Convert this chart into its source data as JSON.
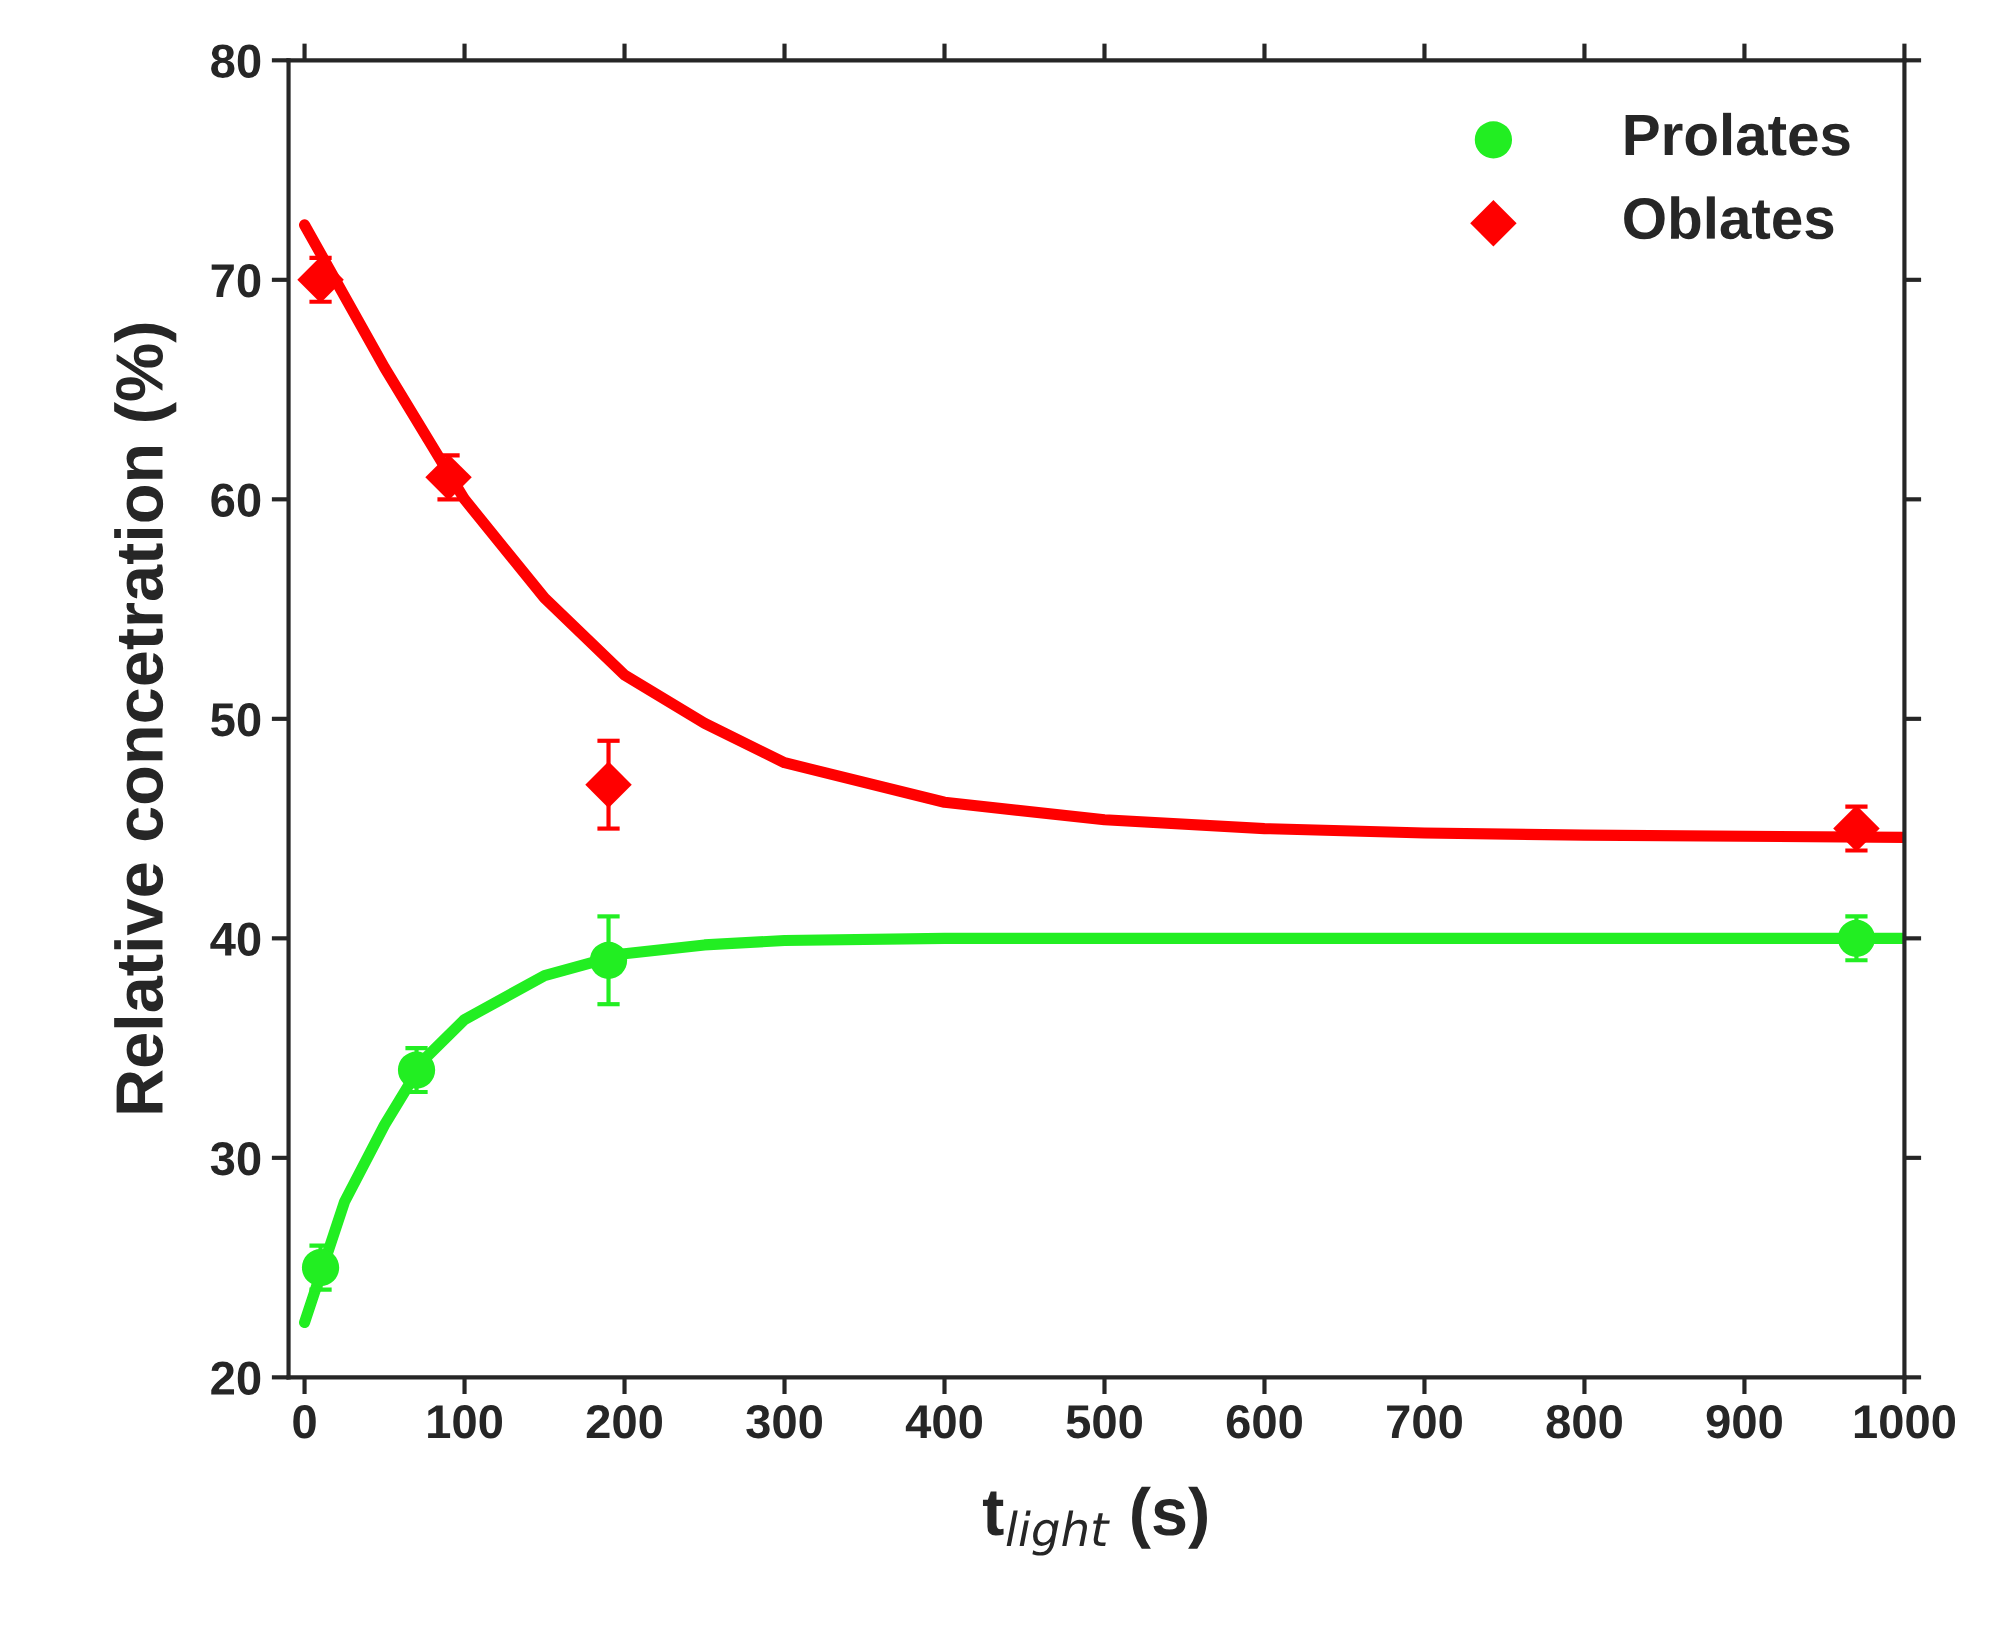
{
  "chart_data": {
    "type": "scatter",
    "xlabel": "t$_{light}$ (s)",
    "ylabel": "Relative concetration (%)",
    "xlim": [
      -10,
      1000
    ],
    "ylim": [
      20,
      80
    ],
    "xticks": [
      0,
      100,
      200,
      300,
      400,
      500,
      600,
      700,
      800,
      900,
      1000
    ],
    "yticks": [
      20,
      30,
      40,
      50,
      60,
      70,
      80
    ],
    "grid": false,
    "legend": "top right",
    "series": [
      {
        "type": "line",
        "color": "#22ee22",
        "x": [
          0,
          25,
          50,
          75,
          100,
          150,
          200,
          250,
          300,
          400,
          600,
          1000
        ],
        "values": [
          22.5,
          28,
          31.5,
          34.5,
          36.3,
          38.3,
          39.3,
          39.7,
          39.9,
          40,
          40,
          40
        ],
        "marker": "none"
      },
      {
        "type": "line",
        "color": "#ff0000",
        "x": [
          0,
          50,
          100,
          150,
          200,
          250,
          300,
          400,
          500,
          600,
          700,
          800,
          1000
        ],
        "values": [
          72.5,
          66,
          60,
          55.5,
          52,
          49.8,
          48,
          46.2,
          45.4,
          45,
          44.8,
          44.7,
          44.6
        ],
        "marker": "none"
      },
      {
        "name": "Prolates",
        "color": "#22ee22",
        "marker": "circle",
        "x": [
          10,
          70,
          190,
          970
        ],
        "values": [
          25,
          34,
          39,
          40
        ],
        "errors": [
          1,
          1,
          2,
          1
        ]
      },
      {
        "name": "Oblates",
        "color": "#ff0000",
        "marker": "diamond",
        "x": [
          10,
          90,
          190,
          970
        ],
        "values": [
          70,
          61,
          47,
          45
        ],
        "errors": [
          1,
          1,
          2,
          1
        ]
      }
    ]
  }
}
